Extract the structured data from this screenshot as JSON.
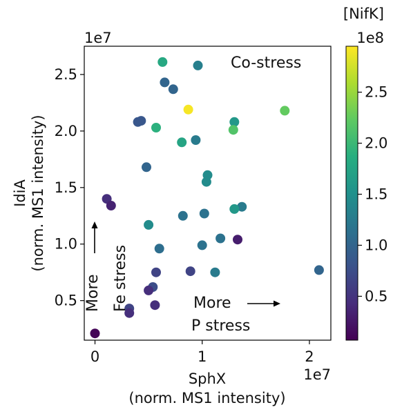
{
  "chart_data": {
    "type": "scatter",
    "title": "",
    "xlabel_line1": "SphX",
    "xlabel_line2": "(norm. MS1 intensity)",
    "ylabel_line1": "IdiA",
    "ylabel_line2": "(norm. MS1 intensity)",
    "x_exponent": "1e7",
    "y_exponent": "1e7",
    "xlim": [
      -1000000,
      22000000
    ],
    "ylim": [
      1500000,
      27500000
    ],
    "x_ticks": [
      0,
      10000000,
      20000000
    ],
    "x_tick_labels": [
      "0",
      "1",
      "2"
    ],
    "y_ticks": [
      5000000,
      10000000,
      15000000,
      20000000,
      25000000
    ],
    "y_tick_labels": [
      "0.5",
      "1.0",
      "1.5",
      "2.0",
      "2.5"
    ],
    "colorbar": {
      "title": "[NifK]",
      "exponent": "1e8",
      "colormap": "viridis",
      "range": [
        7000000,
        295000000
      ],
      "ticks": [
        50000000,
        100000000,
        150000000,
        200000000,
        250000000
      ],
      "tick_labels": [
        "0.5",
        "1.0",
        "1.5",
        "2.0",
        "2.5"
      ]
    },
    "annotations": {
      "co_stress": "Co-stress",
      "p_stress_line1": "More",
      "p_stress_line2": "P stress",
      "fe_stress_line1": "More",
      "fe_stress_line2": "Fe stress"
    },
    "points": [
      {
        "x": 6300000,
        "y": 26100000,
        "c": 180000000
      },
      {
        "x": 9600000,
        "y": 25800000,
        "c": 130000000
      },
      {
        "x": 6500000,
        "y": 24300000,
        "c": 100000000
      },
      {
        "x": 7300000,
        "y": 23700000,
        "c": 100000000
      },
      {
        "x": 8700000,
        "y": 21900000,
        "c": 292000000
      },
      {
        "x": 17700000,
        "y": 21800000,
        "c": 225000000
      },
      {
        "x": 13000000,
        "y": 20800000,
        "c": 160000000
      },
      {
        "x": 4000000,
        "y": 20800000,
        "c": 85000000
      },
      {
        "x": 4300000,
        "y": 20900000,
        "c": 85000000
      },
      {
        "x": 5700000,
        "y": 20300000,
        "c": 190000000
      },
      {
        "x": 12900000,
        "y": 20100000,
        "c": 215000000
      },
      {
        "x": 9400000,
        "y": 19200000,
        "c": 125000000
      },
      {
        "x": 8100000,
        "y": 19000000,
        "c": 175000000
      },
      {
        "x": 4800000,
        "y": 16800000,
        "c": 100000000
      },
      {
        "x": 10500000,
        "y": 16100000,
        "c": 145000000
      },
      {
        "x": 10400000,
        "y": 15500000,
        "c": 145000000
      },
      {
        "x": 1100000,
        "y": 14000000,
        "c": 45000000
      },
      {
        "x": 1500000,
        "y": 13400000,
        "c": 35000000
      },
      {
        "x": 13700000,
        "y": 13300000,
        "c": 125000000
      },
      {
        "x": 13000000,
        "y": 13100000,
        "c": 160000000
      },
      {
        "x": 10200000,
        "y": 12700000,
        "c": 115000000
      },
      {
        "x": 8200000,
        "y": 12500000,
        "c": 115000000
      },
      {
        "x": 5000000,
        "y": 11700000,
        "c": 145000000
      },
      {
        "x": 11700000,
        "y": 10500000,
        "c": 115000000
      },
      {
        "x": 13300000,
        "y": 10400000,
        "c": 30000000
      },
      {
        "x": 10000000,
        "y": 9900000,
        "c": 115000000
      },
      {
        "x": 6000000,
        "y": 9600000,
        "c": 110000000
      },
      {
        "x": 20900000,
        "y": 7700000,
        "c": 100000000
      },
      {
        "x": 8900000,
        "y": 7600000,
        "c": 65000000
      },
      {
        "x": 5700000,
        "y": 7500000,
        "c": 65000000
      },
      {
        "x": 11200000,
        "y": 7500000,
        "c": 125000000
      },
      {
        "x": 5400000,
        "y": 6200000,
        "c": 75000000
      },
      {
        "x": 5000000,
        "y": 5900000,
        "c": 45000000
      },
      {
        "x": 5600000,
        "y": 4600000,
        "c": 45000000
      },
      {
        "x": 3200000,
        "y": 4300000,
        "c": 65000000
      },
      {
        "x": 3200000,
        "y": 3900000,
        "c": 45000000
      },
      {
        "x": 0,
        "y": 2100000,
        "c": 10000000
      }
    ]
  }
}
